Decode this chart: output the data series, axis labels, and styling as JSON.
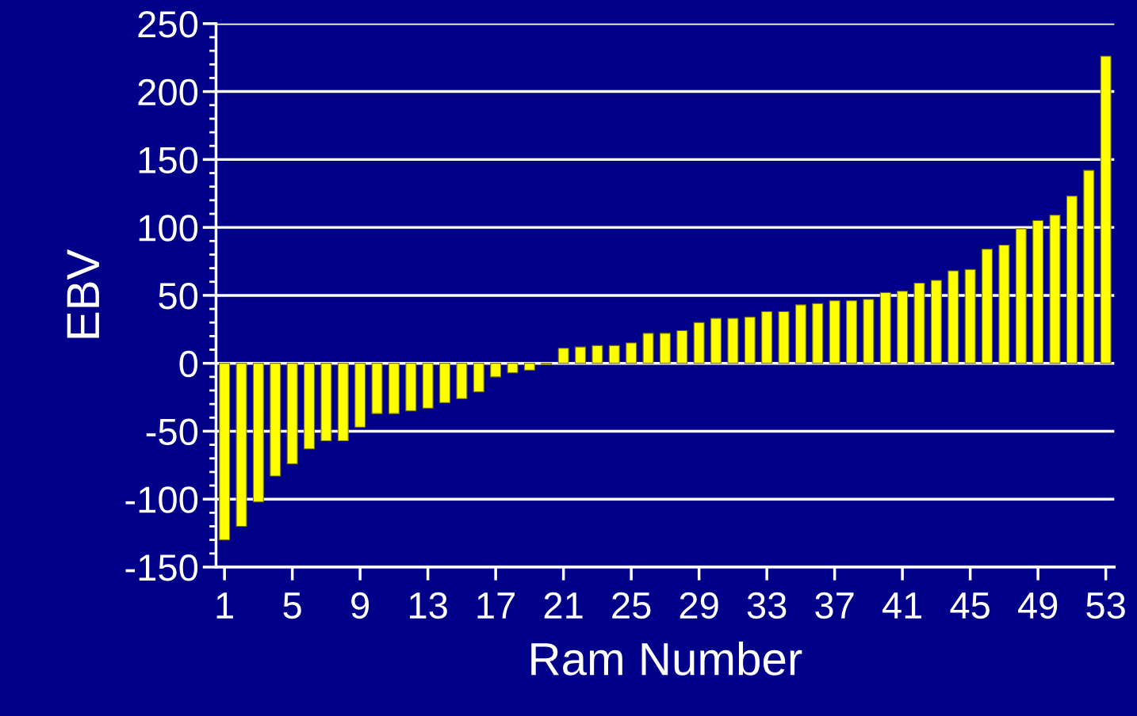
{
  "chart_data": {
    "type": "bar",
    "xlabel": "Ram Number",
    "ylabel": "EBV",
    "categories": [
      "1",
      null,
      null,
      null,
      "5",
      null,
      null,
      null,
      "9",
      null,
      null,
      null,
      "13",
      null,
      null,
      null,
      "17",
      null,
      null,
      null,
      "21",
      null,
      null,
      null,
      "25",
      null,
      null,
      null,
      "29",
      null,
      null,
      null,
      "33",
      null,
      null,
      null,
      "37",
      null,
      null,
      null,
      "41",
      null,
      null,
      null,
      "45",
      null,
      null,
      null,
      "49",
      null,
      null,
      null,
      "53"
    ],
    "values": [
      -130,
      -120,
      -102,
      -83,
      -74,
      -63,
      -57,
      -57,
      -47,
      -37,
      -37,
      -35,
      -33,
      -29,
      -26,
      -21,
      -10,
      -7,
      -5,
      -1,
      11,
      12,
      13,
      13,
      15,
      22,
      22,
      24,
      30,
      33,
      33,
      34,
      38,
      38,
      43,
      44,
      46,
      46,
      47,
      52,
      53,
      59,
      61,
      68,
      69,
      84,
      87,
      99,
      105,
      109,
      123,
      142,
      226
    ],
    "color": "#ffff00",
    "ylim": [
      -150,
      250
    ],
    "yticks": [
      -150,
      -100,
      -50,
      0,
      50,
      100,
      150,
      200,
      250
    ],
    "grid": "y"
  }
}
